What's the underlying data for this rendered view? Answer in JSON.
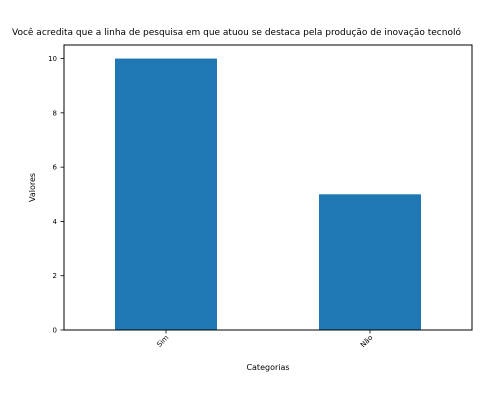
{
  "chart_data": {
    "type": "bar",
    "title": "Você acredita que a linha de pesquisa em que atuou se destaca pela produção de inovação tecnoló",
    "xlabel": "Categorias",
    "ylabel": "Valores",
    "categories": [
      "Sim",
      "Não"
    ],
    "values": [
      10,
      5
    ],
    "ylim": [
      0,
      10.5
    ],
    "yticks": [
      0,
      2,
      4,
      6,
      8,
      10
    ],
    "bar_color": "#1f77b4",
    "grid": false,
    "xtick_rotation": -45
  }
}
